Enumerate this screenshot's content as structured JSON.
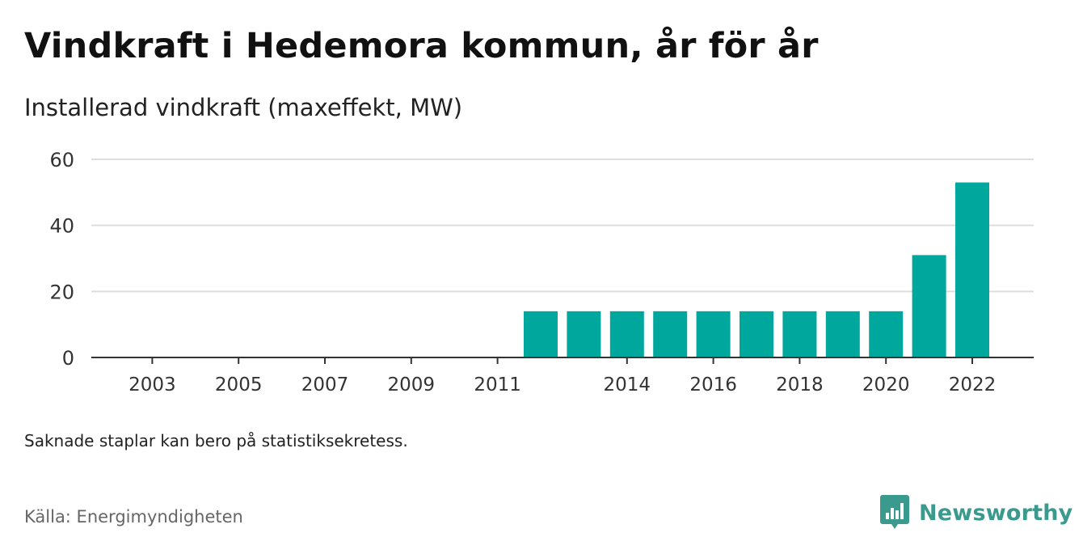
{
  "title": "Vindkraft i Hedemora kommun, år för år",
  "subtitle": "Installerad vindkraft (maxeffekt, MW)",
  "footnote": "Saknade staplar kan bero på statistiksekretess.",
  "source": "Källa: Energimyndigheten",
  "brand": {
    "name": "Newsworthy",
    "icon": "newsworthy-logo-icon"
  },
  "colors": {
    "bar": "#00a79d",
    "grid": "#dddddd",
    "axis": "#333333",
    "brand": "#3a9a8e"
  },
  "chart_data": {
    "type": "bar",
    "categories": [
      "2002",
      "2003",
      "2004",
      "2005",
      "2006",
      "2007",
      "2008",
      "2009",
      "2010",
      "2011",
      "2012",
      "2013",
      "2014",
      "2015",
      "2016",
      "2017",
      "2018",
      "2019",
      "2020",
      "2021",
      "2022"
    ],
    "values": [
      0,
      0,
      0,
      0,
      0,
      0,
      0,
      0,
      0,
      0,
      14,
      14,
      14,
      14,
      14,
      14,
      14,
      14,
      14,
      31,
      53
    ],
    "x_tick_labels": [
      "2003",
      "2005",
      "2007",
      "2009",
      "2011",
      "2014",
      "2016",
      "2018",
      "2020",
      "2022"
    ],
    "y_ticks": [
      0,
      20,
      40,
      60
    ],
    "ylim": [
      0,
      60
    ],
    "grid": true,
    "legend": false
  }
}
